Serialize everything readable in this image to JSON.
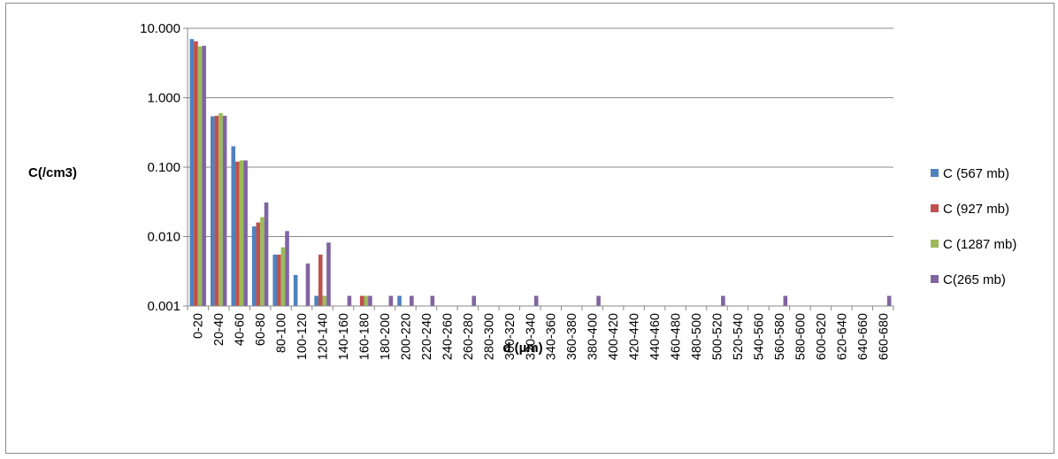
{
  "chart_data": {
    "type": "bar",
    "title": "",
    "xlabel": "d (µm)",
    "ylabel": "C(/cm3)",
    "yscale": "log",
    "ylim": [
      0.001,
      10
    ],
    "yticks": [
      "10.000",
      "1.000",
      "0.100",
      "0.010",
      "0.001"
    ],
    "grid": "horizontal",
    "legend_position": "right",
    "categories": [
      "0-20",
      "20-40",
      "40-60",
      "60-80",
      "80-100",
      "100-120",
      "120-140",
      "140-160",
      "160-180",
      "180-200",
      "200-220",
      "220-240",
      "240-260",
      "260-280",
      "280-300",
      "300-320",
      "320-340",
      "340-360",
      "360-380",
      "380-400",
      "400-420",
      "420-440",
      "440-460",
      "460-480",
      "480-500",
      "500-520",
      "520-540",
      "540-560",
      "560-580",
      "580-600",
      "600-620",
      "620-640",
      "640-660",
      "660-680"
    ],
    "series": [
      {
        "name": "C (567 mb)",
        "color": "#4f81bd",
        "values": [
          7.0,
          0.54,
          0.2,
          0.014,
          0.0055,
          0.0028,
          0.0014,
          null,
          null,
          null,
          0.0014,
          null,
          null,
          null,
          null,
          null,
          null,
          null,
          null,
          null,
          null,
          null,
          null,
          null,
          null,
          null,
          null,
          null,
          null,
          null,
          null,
          null,
          null,
          null
        ]
      },
      {
        "name": "C (927 mb)",
        "color": "#c0504d",
        "values": [
          6.5,
          0.55,
          0.12,
          0.016,
          0.0055,
          null,
          0.0055,
          null,
          0.0014,
          null,
          null,
          null,
          null,
          null,
          null,
          null,
          null,
          null,
          null,
          null,
          null,
          null,
          null,
          null,
          null,
          null,
          null,
          null,
          null,
          null,
          null,
          null,
          null,
          null
        ]
      },
      {
        "name": "C (1287 mb)",
        "color": "#9bbb59",
        "values": [
          5.5,
          0.6,
          0.125,
          0.019,
          0.007,
          null,
          0.0014,
          null,
          0.0014,
          null,
          null,
          null,
          null,
          null,
          null,
          null,
          null,
          null,
          null,
          null,
          null,
          null,
          null,
          null,
          null,
          null,
          null,
          null,
          null,
          null,
          null,
          null,
          null,
          null
        ]
      },
      {
        "name": "C(265 mb)",
        "color": "#8064a2",
        "values": [
          5.6,
          0.55,
          0.125,
          0.031,
          0.012,
          0.0041,
          0.0082,
          0.0014,
          0.0014,
          0.0014,
          0.0014,
          0.0014,
          null,
          0.0014,
          null,
          null,
          0.0014,
          null,
          null,
          0.0014,
          null,
          null,
          null,
          null,
          null,
          0.0014,
          null,
          null,
          0.0014,
          null,
          null,
          null,
          null,
          0.0014
        ]
      }
    ]
  }
}
